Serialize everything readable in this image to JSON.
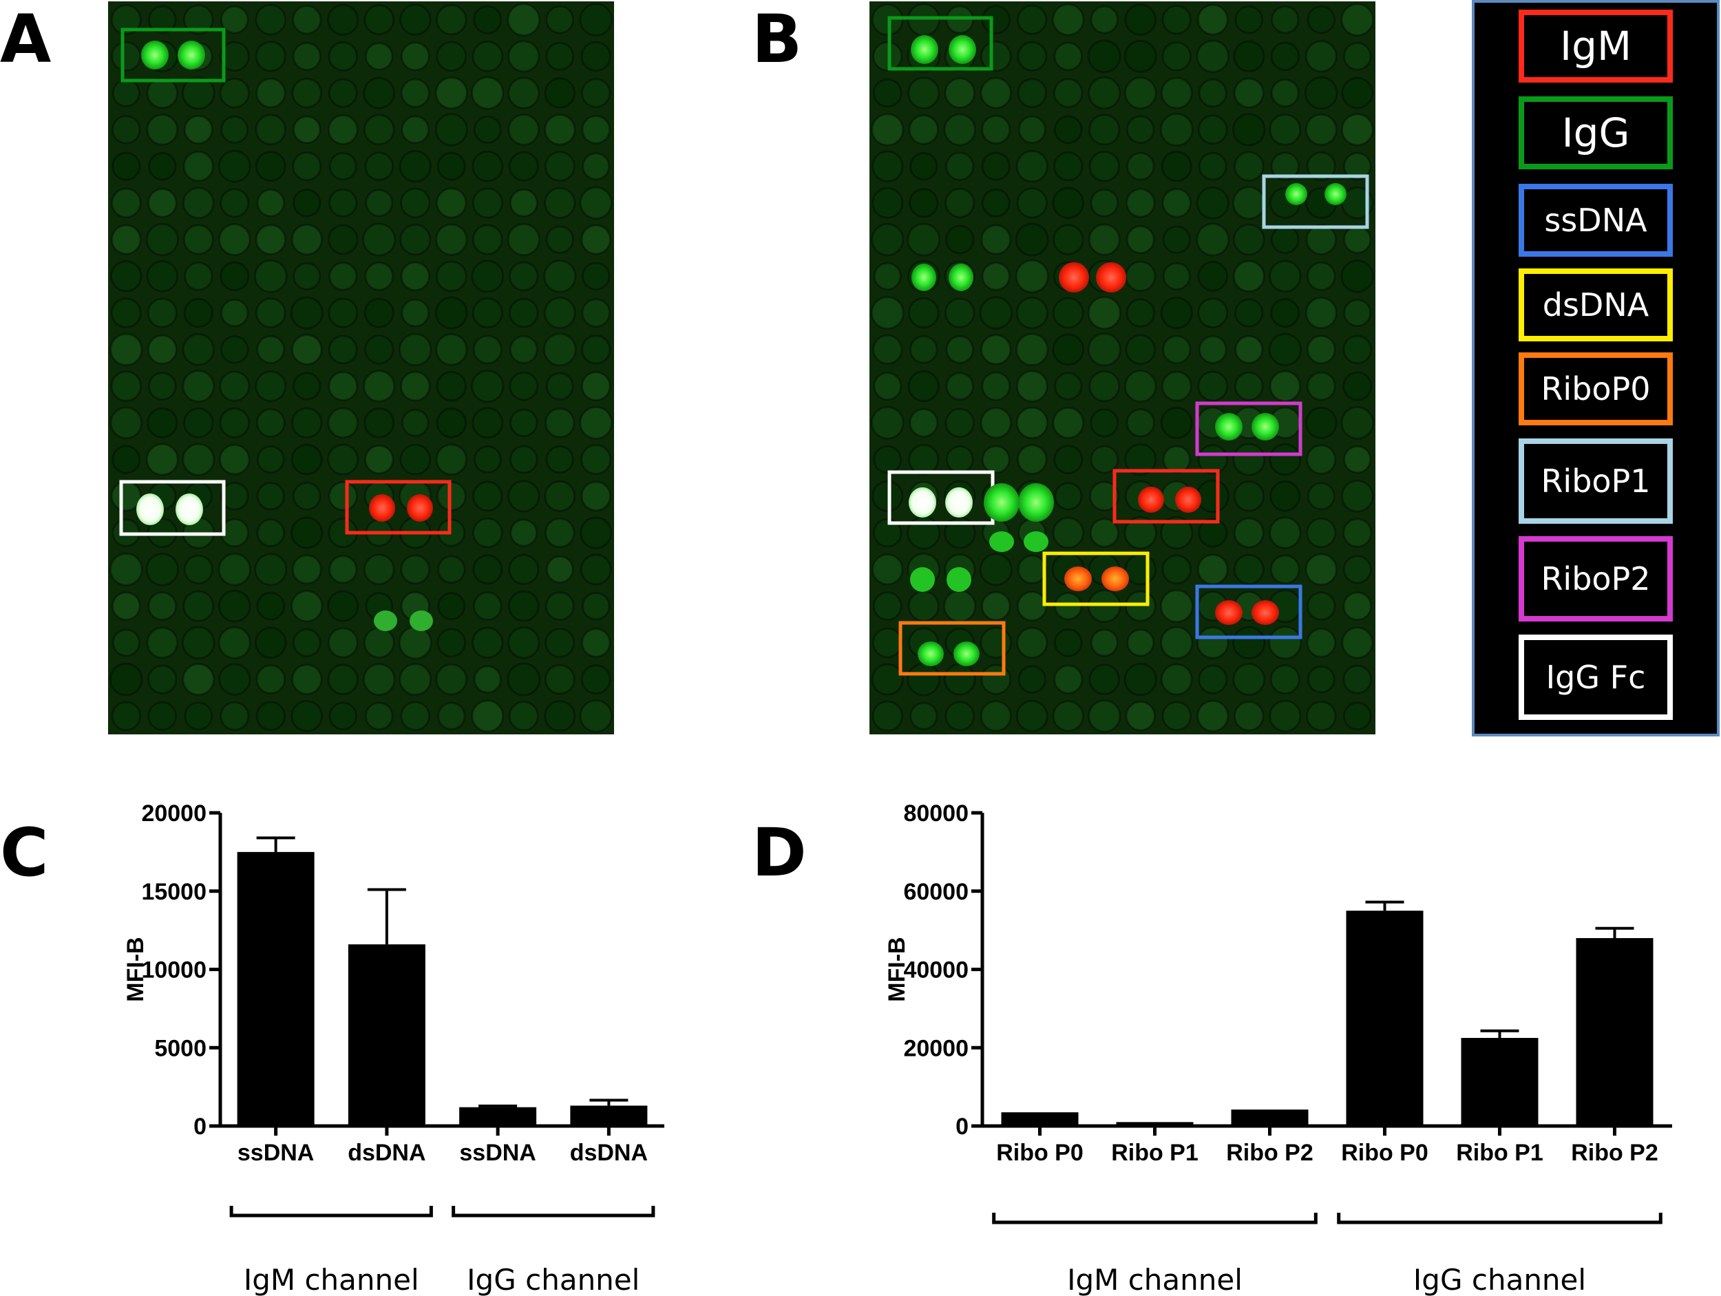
{
  "panels": {
    "A": "A",
    "B": "B",
    "C": "C",
    "D": "D"
  },
  "legend": {
    "items": [
      {
        "label": "IgM",
        "color": "#ff2a1a"
      },
      {
        "label": "IgG",
        "color": "#0a9a1a"
      },
      {
        "label": "ssDNA",
        "color": "#3a78e8"
      },
      {
        "label": "dsDNA",
        "color": "#ffee00"
      },
      {
        "label": "RiboP0",
        "color": "#ff7a10"
      },
      {
        "label": "RiboP1",
        "color": "#a8d4e6"
      },
      {
        "label": "RiboP2",
        "color": "#d43ad0"
      },
      {
        "label": "IgG Fc",
        "color": "#ffffff"
      }
    ]
  },
  "microarray": {
    "background": "#0d2a08",
    "highlight_colors": {
      "green": "#22e522",
      "red": "#ff2a10",
      "white": "#ffffff",
      "orange": "#ff6a10"
    }
  },
  "chart_data": [
    {
      "type": "bar",
      "panel": "C",
      "categories": [
        "ssDNA",
        "dsDNA",
        "ssDNA",
        "dsDNA"
      ],
      "values": [
        17500,
        11600,
        1200,
        1300
      ],
      "errors": [
        900,
        3500,
        80,
        350
      ],
      "ylabel": "MFI-B",
      "ylim": [
        0,
        20000
      ],
      "yticks": [
        "0",
        "5000",
        "10000",
        "15000",
        "20000"
      ],
      "groups": [
        {
          "label": "IgM channel",
          "start": 0,
          "end": 1
        },
        {
          "label": "IgG channel",
          "start": 2,
          "end": 3
        }
      ]
    },
    {
      "type": "bar",
      "panel": "D",
      "categories": [
        "Ribo P0",
        "Ribo P1",
        "Ribo P2",
        "Ribo P0",
        "Ribo P1",
        "Ribo P2"
      ],
      "values": [
        3500,
        1000,
        4200,
        55000,
        22500,
        48000
      ],
      "errors": [
        0,
        0,
        0,
        2200,
        1800,
        2500
      ],
      "ylabel": "MFI-B",
      "ylim": [
        0,
        80000
      ],
      "yticks": [
        "0",
        "20000",
        "40000",
        "60000",
        "80000"
      ],
      "groups": [
        {
          "label": "IgM channel",
          "start": 0,
          "end": 2
        },
        {
          "label": "IgG channel",
          "start": 3,
          "end": 5
        }
      ]
    }
  ]
}
